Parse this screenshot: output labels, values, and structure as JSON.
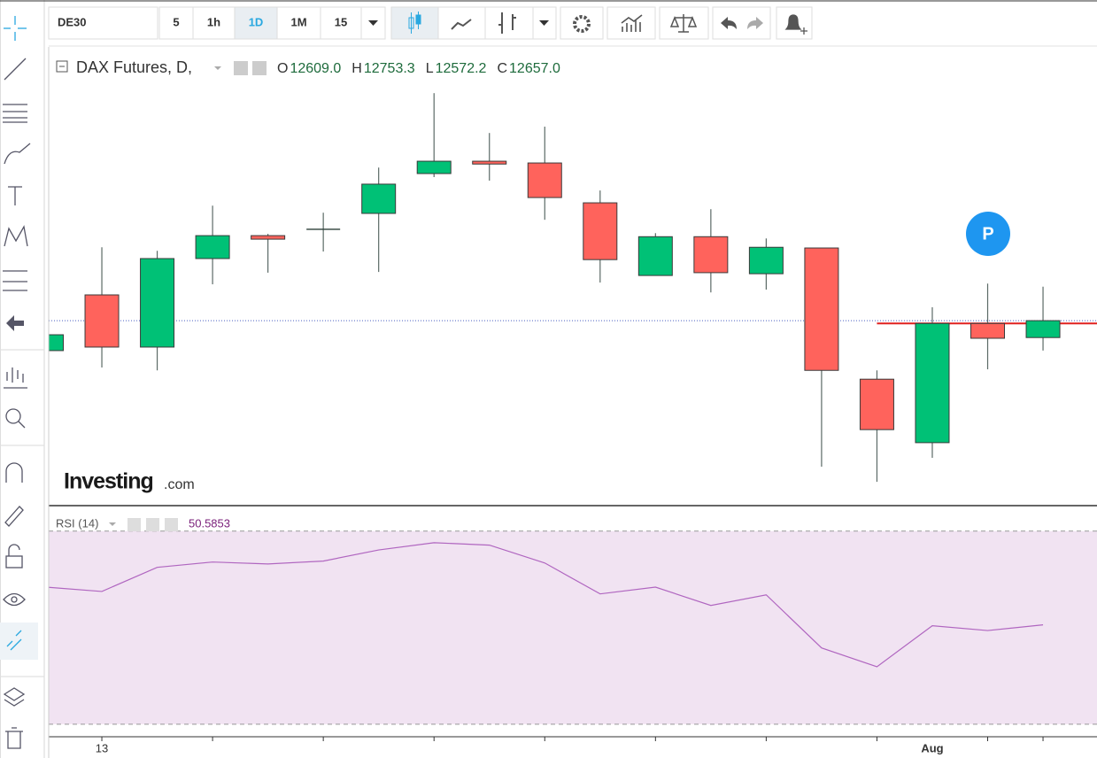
{
  "toolbar": {
    "symbol": "DE30",
    "intervals": [
      "5",
      "1h",
      "1D",
      "1M",
      "15"
    ],
    "active_interval": 2
  },
  "chart_data": [
    {
      "type": "candlestick",
      "title": "DAX Futures, D,",
      "ohlc_keys": [
        "O",
        "H",
        "L",
        "C"
      ],
      "ohlc_printed": [
        "12609.0",
        "12753.3",
        "12572.2",
        "12657.0"
      ],
      "categories": [
        null,
        "13",
        null,
        null,
        null,
        null,
        null,
        null,
        null,
        null,
        null,
        null,
        null,
        null,
        null,
        null,
        "Aug",
        null,
        null
      ],
      "open": [
        12572,
        12730,
        12582,
        12833,
        12898,
        12916,
        12961,
        13074,
        13109,
        13104,
        12991,
        12785,
        12895,
        12790,
        12863,
        12491,
        12311,
        12649,
        12609.0
      ],
      "high": [
        12617,
        12865,
        12855,
        12983,
        12903,
        12963,
        13091,
        13302,
        13189,
        13207,
        13026,
        12905,
        12973,
        12890,
        12863,
        12516,
        12695,
        12762,
        12753.3
      ],
      "low": [
        12572,
        12524,
        12516,
        12760,
        12793,
        12853,
        12795,
        13064,
        13054,
        12943,
        12765,
        12785,
        12737,
        12745,
        12243,
        12200,
        12268,
        12519,
        12572.2
      ],
      "close": [
        12617,
        12582,
        12833,
        12898,
        12888,
        12916,
        13044,
        13109,
        13101,
        13006,
        12830,
        12895,
        12793,
        12865,
        12516,
        12348,
        12649,
        12607,
        12657.0
      ],
      "up_color": "#00c176",
      "down_color": "#ff635c",
      "ylim": [
        12135,
        13428
      ],
      "price_line": 12649,
      "watermark": [
        "Investing",
        ".com"
      ],
      "marker": "P"
    },
    {
      "type": "line",
      "title": "RSI (14)",
      "color": "#b066c0",
      "values": [
        58.4,
        57.5,
        62.5,
        63.6,
        63.2,
        63.8,
        66.1,
        67.6,
        67.1,
        63.4,
        57.0,
        58.4,
        54.6,
        56.8,
        45.8,
        41.9,
        50.4,
        49.4,
        50.5853
      ],
      "ylim": [
        27.4,
        75.1
      ],
      "bands": [
        30,
        70
      ]
    }
  ]
}
